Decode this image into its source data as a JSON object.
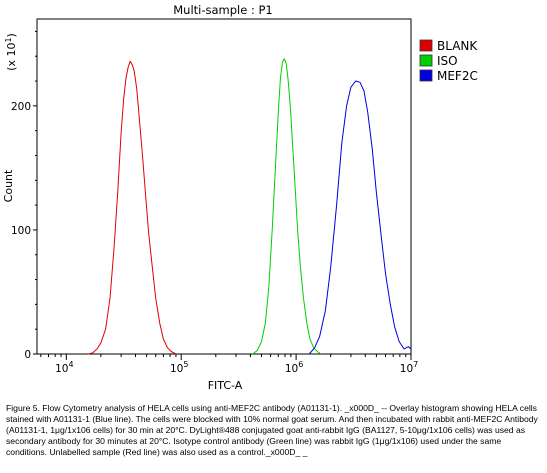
{
  "chart_data": {
    "type": "line",
    "title": "Multi-sample : P1",
    "xlabel": "FITC-A",
    "ylabel": "Count",
    "y_multiplier": "(x 10",
    "y_multiplier_exp": "1",
    "y_multiplier_close": ")",
    "x_scale": "log",
    "xlim": [
      10000,
      10000000
    ],
    "ylim": [
      0,
      270
    ],
    "x_ticks": [
      {
        "value": 10000,
        "base": "10",
        "exp": "4"
      },
      {
        "value": 1000000,
        "base": "10",
        "exp": "6"
      },
      {
        "value": 10000000,
        "base": "10",
        "exp": "7"
      }
    ],
    "x_ticks_drawn": [
      100000
    ],
    "x_ticks_drawn_labels": [
      {
        "base": "10",
        "exp": "5"
      }
    ],
    "y_ticks": [
      0,
      100,
      200
    ],
    "legend_position": "top-right",
    "series": [
      {
        "name": "BLANK",
        "color": "#e00000",
        "points": [
          [
            15500,
            0
          ],
          [
            17000,
            1
          ],
          [
            18500,
            4
          ],
          [
            20000,
            9
          ],
          [
            22000,
            20
          ],
          [
            24000,
            45
          ],
          [
            26000,
            85
          ],
          [
            28000,
            130
          ],
          [
            30000,
            178
          ],
          [
            31500,
            205
          ],
          [
            33000,
            222
          ],
          [
            34500,
            231
          ],
          [
            36000,
            236
          ],
          [
            37500,
            233
          ],
          [
            39000,
            228
          ],
          [
            41000,
            214
          ],
          [
            43000,
            192
          ],
          [
            46000,
            160
          ],
          [
            49000,
            128
          ],
          [
            52000,
            98
          ],
          [
            56000,
            70
          ],
          [
            60000,
            45
          ],
          [
            65000,
            25
          ],
          [
            70000,
            12
          ],
          [
            76000,
            5
          ],
          [
            82000,
            2
          ],
          [
            90000,
            0
          ]
        ]
      },
      {
        "name": "ISO",
        "color": "#00d000",
        "points": [
          [
            420000,
            0
          ],
          [
            460000,
            3
          ],
          [
            500000,
            10
          ],
          [
            540000,
            25
          ],
          [
            580000,
            55
          ],
          [
            620000,
            100
          ],
          [
            660000,
            150
          ],
          [
            700000,
            195
          ],
          [
            730000,
            222
          ],
          [
            760000,
            235
          ],
          [
            790000,
            238
          ],
          [
            820000,
            234
          ],
          [
            850000,
            222
          ],
          [
            890000,
            200
          ],
          [
            930000,
            170
          ],
          [
            980000,
            135
          ],
          [
            1030000,
            100
          ],
          [
            1090000,
            70
          ],
          [
            1160000,
            45
          ],
          [
            1240000,
            25
          ],
          [
            1320000,
            12
          ],
          [
            1420000,
            5
          ],
          [
            1530000,
            2
          ],
          [
            1650000,
            0
          ]
        ]
      },
      {
        "name": "MEF2C",
        "color": "#0000dd",
        "points": [
          [
            1300000,
            0
          ],
          [
            1450000,
            5
          ],
          [
            1600000,
            14
          ],
          [
            1800000,
            35
          ],
          [
            2000000,
            70
          ],
          [
            2250000,
            120
          ],
          [
            2500000,
            170
          ],
          [
            2750000,
            200
          ],
          [
            3000000,
            215
          ],
          [
            3300000,
            220
          ],
          [
            3600000,
            219
          ],
          [
            3900000,
            212
          ],
          [
            4200000,
            195
          ],
          [
            4600000,
            165
          ],
          [
            5000000,
            130
          ],
          [
            5500000,
            95
          ],
          [
            6000000,
            65
          ],
          [
            6600000,
            40
          ],
          [
            7200000,
            22
          ],
          [
            7900000,
            10
          ],
          [
            8700000,
            4
          ],
          [
            9500000,
            6
          ],
          [
            10000000,
            4
          ]
        ]
      }
    ]
  },
  "caption": [
    "Figure 5. Flow Cytometry analysis of HELA cells using anti-MEF2C antibody (A01131-1). _x000D_ -- Overlay histogram showing HELA cells stained with A01131-1 (Blue line). The cells were blocked with 10% normal goat serum. And then incubated with rabbit anti-MEF2C Antibody (A01131-1, 1μg/1x106 cells) for 30 min at 20°C. DyLight®488 conjugated goat anti-rabbit IgG (BA1127, 5-10μg/1x106 cells) was used as secondary antibody for 30 minutes at 20°C. Isotype control antibody (Green line) was rabbit IgG (1μg/1x106) used under the same conditions. Unlabelled sample (Red line) was also used as a control._x000D_ _"
  ]
}
